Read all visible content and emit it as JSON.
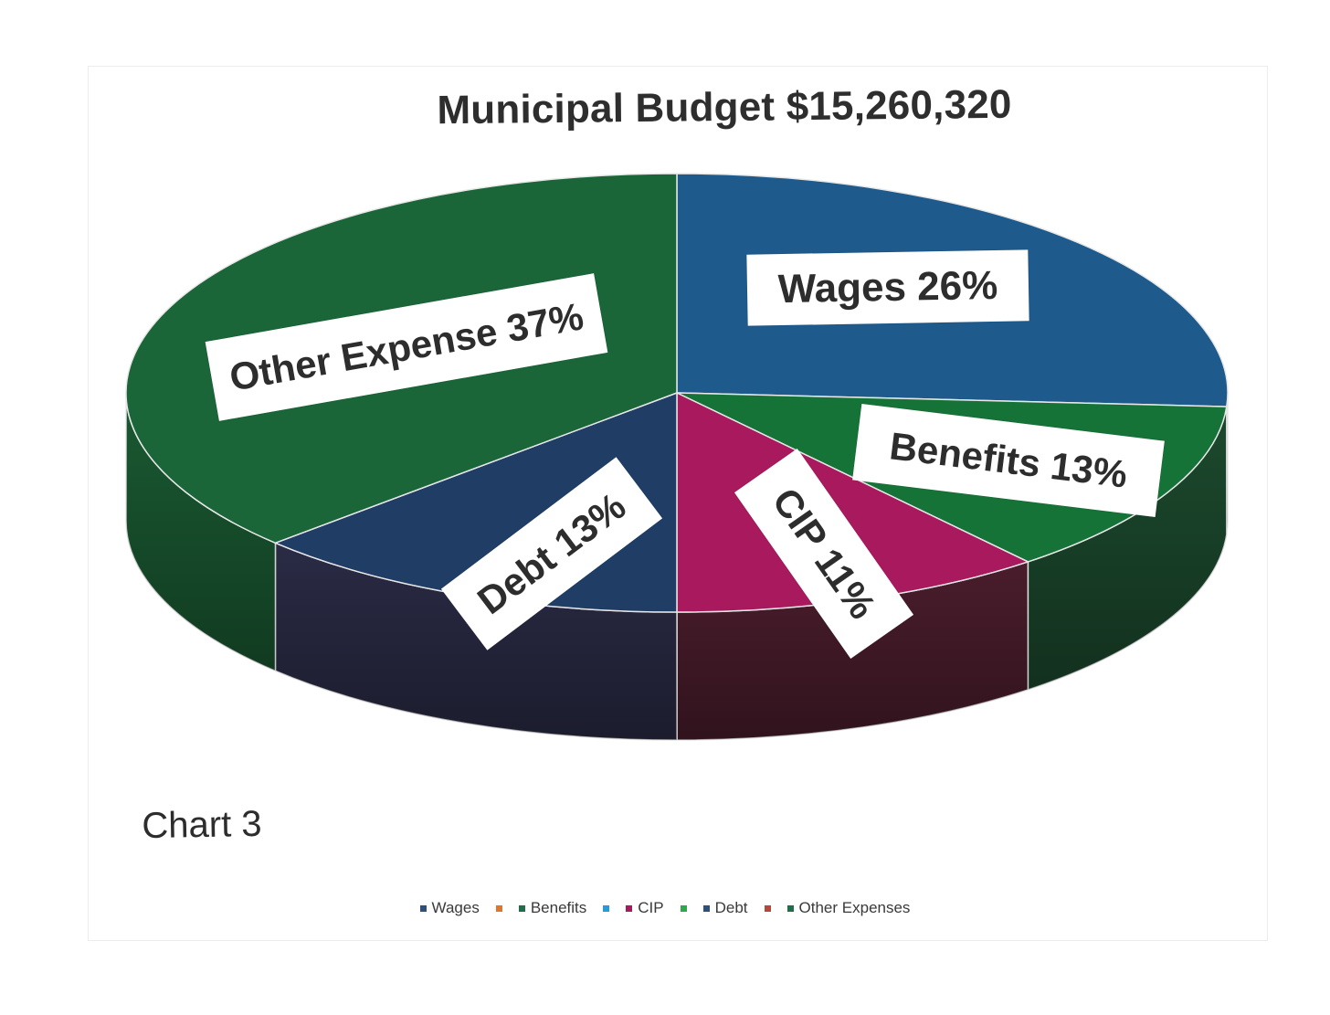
{
  "chart_data": {
    "type": "pie",
    "title": "Municipal Budget $15,260,320",
    "note": "Chart 3",
    "slices": [
      {
        "label": "Wages 26%",
        "name": "Wages",
        "value": 26,
        "color": "#1e5a8c"
      },
      {
        "label": "Benefits 13%",
        "name": "Benefits",
        "value": 13,
        "color": "#167338"
      },
      {
        "label": "CIP 11%",
        "name": "CIP",
        "value": 11,
        "color": "#a8195d"
      },
      {
        "label": "Debt 13%",
        "name": "Debt",
        "value": 13,
        "color": "#1f3d65"
      },
      {
        "label": "Other Expense 37%",
        "name": "Other Expenses",
        "value": 37,
        "color": "#1a6639"
      }
    ],
    "legend": {
      "placement": "bottom",
      "entries": [
        {
          "name": "Wages",
          "color": "#2f4e78"
        },
        {
          "name": "",
          "color": "#e0762e"
        },
        {
          "name": "Benefits",
          "color": "#1f6e4a"
        },
        {
          "name": "",
          "color": "#2a9ad6"
        },
        {
          "name": "CIP",
          "color": "#a8195d"
        },
        {
          "name": "",
          "color": "#2fa84a"
        },
        {
          "name": "Debt",
          "color": "#2f4e78"
        },
        {
          "name": "",
          "color": "#b5473a"
        },
        {
          "name": "Other Expenses",
          "color": "#1f6e4a"
        }
      ]
    }
  }
}
